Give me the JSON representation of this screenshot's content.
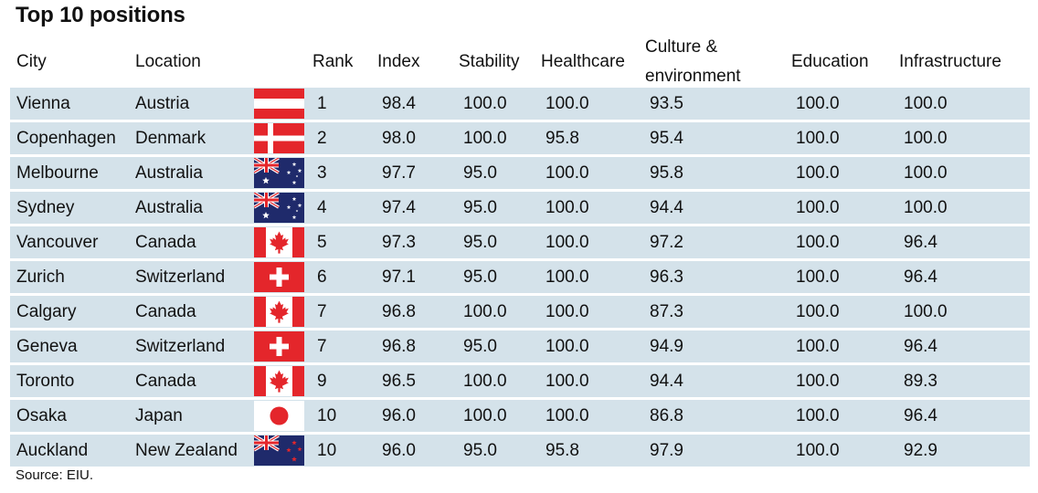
{
  "title": "Top 10 positions",
  "source": "Source: EIU.",
  "columns": {
    "city": "City",
    "location": "Location",
    "rank": "Rank",
    "index": "Index",
    "stability": "Stability",
    "healthcare": "Healthcare",
    "culture_line1": "Culture &",
    "culture_line2": "environment",
    "education": "Education",
    "infrastructure": "Infrastructure"
  },
  "chart_data": {
    "type": "table",
    "title": "Top 10 positions",
    "columns": [
      "City",
      "Location",
      "Rank",
      "Index",
      "Stability",
      "Healthcare",
      "Culture & environment",
      "Education",
      "Infrastructure"
    ],
    "rows": [
      {
        "city": "Vienna",
        "location": "Austria",
        "flag": "austria-flag",
        "rank": "1",
        "index": "98.4",
        "stability": "100.0",
        "healthcare": "100.0",
        "culture": "93.5",
        "education": "100.0",
        "infrastructure": "100.0"
      },
      {
        "city": "Copenhagen",
        "location": "Denmark",
        "flag": "denmark-flag",
        "rank": "2",
        "index": "98.0",
        "stability": "100.0",
        "healthcare": "95.8",
        "culture": "95.4",
        "education": "100.0",
        "infrastructure": "100.0"
      },
      {
        "city": "Melbourne",
        "location": "Australia",
        "flag": "australia-flag",
        "rank": "3",
        "index": "97.7",
        "stability": "95.0",
        "healthcare": "100.0",
        "culture": "95.8",
        "education": "100.0",
        "infrastructure": "100.0"
      },
      {
        "city": "Sydney",
        "location": "Australia",
        "flag": "australia-flag",
        "rank": "4",
        "index": "97.4",
        "stability": "95.0",
        "healthcare": "100.0",
        "culture": "94.4",
        "education": "100.0",
        "infrastructure": "100.0"
      },
      {
        "city": "Vancouver",
        "location": "Canada",
        "flag": "canada-flag",
        "rank": "5",
        "index": "97.3",
        "stability": "95.0",
        "healthcare": "100.0",
        "culture": "97.2",
        "education": "100.0",
        "infrastructure": "96.4"
      },
      {
        "city": "Zurich",
        "location": "Switzerland",
        "flag": "switzerland-flag",
        "rank": "6",
        "index": "97.1",
        "stability": "95.0",
        "healthcare": "100.0",
        "culture": "96.3",
        "education": "100.0",
        "infrastructure": "96.4"
      },
      {
        "city": "Calgary",
        "location": "Canada",
        "flag": "canada-flag",
        "rank": "7",
        "index": "96.8",
        "stability": "100.0",
        "healthcare": "100.0",
        "culture": "87.3",
        "education": "100.0",
        "infrastructure": "100.0"
      },
      {
        "city": "Geneva",
        "location": "Switzerland",
        "flag": "switzerland-flag",
        "rank": "7",
        "index": "96.8",
        "stability": "95.0",
        "healthcare": "100.0",
        "culture": "94.9",
        "education": "100.0",
        "infrastructure": "96.4"
      },
      {
        "city": "Toronto",
        "location": "Canada",
        "flag": "canada-flag",
        "rank": "9",
        "index": "96.5",
        "stability": "100.0",
        "healthcare": "100.0",
        "culture": "94.4",
        "education": "100.0",
        "infrastructure": "89.3"
      },
      {
        "city": "Osaka",
        "location": "Japan",
        "flag": "japan-flag",
        "rank": "10",
        "index": "96.0",
        "stability": "100.0",
        "healthcare": "100.0",
        "culture": "86.8",
        "education": "100.0",
        "infrastructure": "96.4"
      },
      {
        "city": "Auckland",
        "location": "New Zealand",
        "flag": "new-zealand-flag",
        "rank": "10",
        "index": "96.0",
        "stability": "95.0",
        "healthcare": "95.8",
        "culture": "97.9",
        "education": "100.0",
        "infrastructure": "92.9"
      }
    ]
  },
  "colors": {
    "row_background": "#d4e2ea",
    "flag_red": "#e4262b",
    "flag_navy": "#1f2a6b",
    "flag_white": "#ffffff"
  }
}
